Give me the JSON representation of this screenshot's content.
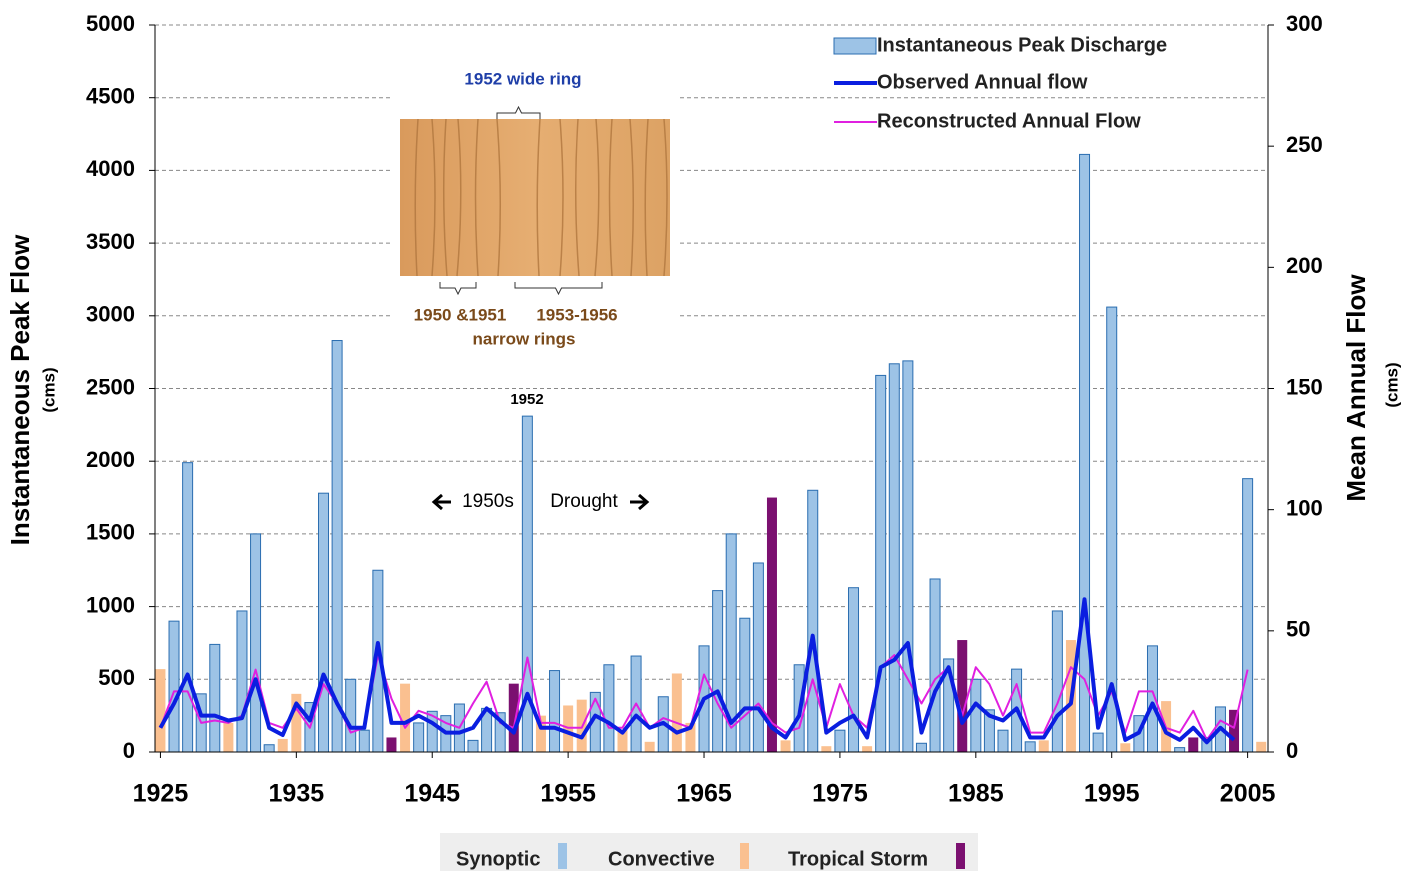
{
  "chart_data": {
    "type": "combo",
    "y_axis_label": "Instantaneous Peak Flow",
    "y_axis_unit": "(cms)",
    "y2_axis_label": "Mean Annual Flow",
    "y2_axis_unit": "(cms)",
    "bar_group_name": "Instantaneous Peak Discharge",
    "xlim": [
      1924.6,
      2006.5
    ],
    "xticks": [
      1925,
      1935,
      1945,
      1955,
      1965,
      1975,
      1985,
      1995,
      2005
    ],
    "ylim": [
      0,
      5000
    ],
    "yticks": [
      0,
      500,
      1000,
      1500,
      2000,
      2500,
      3000,
      3500,
      4000,
      4500,
      5000
    ],
    "y2lim": [
      0,
      300
    ],
    "y2ticks": [
      0,
      50,
      100,
      150,
      200,
      250,
      300
    ],
    "grid": true,
    "series": [
      {
        "name": "Synoptic",
        "type": "bar",
        "color": "#9dc3e6",
        "x": [
          1926,
          1927,
          1928,
          1929,
          1931,
          1932,
          1933,
          1936,
          1937,
          1938,
          1939,
          1940,
          1941,
          1944,
          1945,
          1946,
          1947,
          1948,
          1949,
          1950,
          1952,
          1954,
          1957,
          1958,
          1960,
          1962,
          1965,
          1966,
          1967,
          1968,
          1969,
          1972,
          1973,
          1975,
          1976,
          1978,
          1979,
          1980,
          1981,
          1982,
          1983,
          1985,
          1986,
          1987,
          1988,
          1989,
          1991,
          1993,
          1994,
          1995,
          1997,
          1998,
          2000,
          2002,
          2003,
          2005
        ],
        "values": [
          900,
          1990,
          400,
          740,
          970,
          1500,
          50,
          340,
          1780,
          2830,
          500,
          150,
          1250,
          200,
          280,
          250,
          330,
          80,
          300,
          270,
          2310,
          560,
          410,
          600,
          660,
          380,
          730,
          1110,
          1500,
          920,
          1300,
          600,
          1800,
          150,
          1130,
          2590,
          2670,
          2690,
          60,
          1190,
          640,
          500,
          290,
          150,
          570,
          70,
          970,
          4110,
          130,
          3060,
          250,
          730,
          30,
          100,
          310,
          1880
        ]
      },
      {
        "name": "Convective",
        "type": "bar",
        "color": "#fac090",
        "x": [
          1925,
          1930,
          1934,
          1935,
          1943,
          1953,
          1955,
          1956,
          1959,
          1961,
          1963,
          1964,
          1971,
          1974,
          1977,
          1990,
          1992,
          1996,
          1999,
          2006
        ],
        "values": [
          570,
          200,
          90,
          400,
          470,
          250,
          320,
          360,
          150,
          70,
          540,
          200,
          80,
          40,
          40,
          80,
          770,
          60,
          350,
          70
        ]
      },
      {
        "name": "Tropical Storm",
        "type": "bar",
        "color": "#7b1070",
        "x": [
          1942,
          1951,
          1970,
          1984,
          2001,
          2004
        ],
        "values": [
          100,
          470,
          1750,
          770,
          100,
          290
        ]
      },
      {
        "name": "Observed Annual flow",
        "type": "line",
        "axis": "y2",
        "color": "#0a1ee0",
        "x": [
          1925,
          1926,
          1927,
          1928,
          1929,
          1930,
          1931,
          1932,
          1933,
          1934,
          1935,
          1936,
          1937,
          1938,
          1939,
          1940,
          1941,
          1942,
          1943,
          1944,
          1945,
          1946,
          1947,
          1948,
          1949,
          1950,
          1951,
          1952,
          1953,
          1954,
          1955,
          1956,
          1957,
          1958,
          1959,
          1960,
          1961,
          1962,
          1963,
          1964,
          1965,
          1966,
          1967,
          1968,
          1969,
          1970,
          1971,
          1972,
          1973,
          1974,
          1975,
          1976,
          1977,
          1978,
          1979,
          1980,
          1981,
          1982,
          1983,
          1984,
          1985,
          1986,
          1987,
          1988,
          1989,
          1990,
          1991,
          1992,
          1993,
          1994,
          1995,
          1996,
          1997,
          1998,
          1999,
          2000,
          2001,
          2002,
          2003,
          2004
        ],
        "values": [
          10,
          20,
          32,
          15,
          15,
          13,
          14,
          30,
          10,
          7,
          20,
          13,
          32,
          20,
          10,
          10,
          45,
          12,
          12,
          15,
          12,
          8,
          8,
          10,
          18,
          13,
          8,
          24,
          10,
          10,
          8,
          6,
          15,
          12,
          8,
          15,
          10,
          12,
          8,
          10,
          22,
          25,
          12,
          18,
          18,
          10,
          6,
          15,
          48,
          8,
          12,
          15,
          6,
          35,
          38,
          45,
          8,
          25,
          35,
          12,
          20,
          15,
          13,
          18,
          6,
          6,
          15,
          20,
          63,
          10,
          28,
          5,
          8,
          20,
          8,
          5,
          10,
          4,
          10,
          5
        ]
      },
      {
        "name": "Reconstructed Annual Flow",
        "type": "line",
        "axis": "y2",
        "color": "#e020e0",
        "x": [
          1925,
          1926,
          1927,
          1928,
          1929,
          1930,
          1931,
          1932,
          1933,
          1934,
          1935,
          1936,
          1937,
          1938,
          1939,
          1940,
          1941,
          1942,
          1943,
          1944,
          1945,
          1946,
          1947,
          1948,
          1949,
          1950,
          1951,
          1952,
          1953,
          1954,
          1955,
          1956,
          1957,
          1958,
          1959,
          1960,
          1961,
          1962,
          1963,
          1964,
          1965,
          1966,
          1967,
          1968,
          1969,
          1970,
          1971,
          1972,
          1973,
          1974,
          1975,
          1976,
          1977,
          1978,
          1979,
          1980,
          1981,
          1982,
          1983,
          1984,
          1985,
          1986,
          1987,
          1988,
          1989,
          1990,
          1991,
          1992,
          1993,
          1994,
          1995,
          1996,
          1997,
          1998,
          1999,
          2000,
          2001,
          2002,
          2003,
          2004,
          2005
        ],
        "values": [
          10,
          25,
          25,
          12,
          13,
          12,
          15,
          34,
          12,
          10,
          18,
          10,
          28,
          20,
          8,
          10,
          40,
          22,
          10,
          17,
          15,
          12,
          10,
          20,
          29,
          12,
          10,
          39,
          12,
          12,
          10,
          10,
          22,
          10,
          10,
          20,
          10,
          14,
          12,
          10,
          32,
          20,
          10,
          15,
          20,
          12,
          8,
          10,
          30,
          10,
          28,
          15,
          10,
          35,
          40,
          30,
          20,
          30,
          35,
          15,
          35,
          28,
          15,
          28,
          8,
          8,
          20,
          35,
          30,
          15,
          25,
          8,
          25,
          25,
          10,
          8,
          17,
          5,
          13,
          10,
          34
        ]
      }
    ],
    "annotations": [
      "1952 wide ring",
      "1950 &1951",
      "1953-1956",
      "narrow rings",
      "1952",
      "1950s",
      "Drought"
    ]
  }
}
